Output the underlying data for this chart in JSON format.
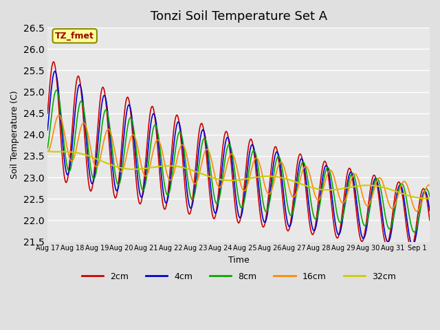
{
  "title": "Tonzi Soil Temperature Set A",
  "xlabel": "Time",
  "ylabel": "Soil Temperature (C)",
  "ylim": [
    21.5,
    26.5
  ],
  "xlim_days": [
    0,
    15.5
  ],
  "x_tick_labels": [
    "Aug 17",
    "Aug 18",
    "Aug 19",
    "Aug 20",
    "Aug 21",
    "Aug 22",
    "Aug 23",
    "Aug 24",
    "Aug 25",
    "Aug 26",
    "Aug 27",
    "Aug 28",
    "Aug 29",
    "Aug 30",
    "Aug 31",
    "Sep 1"
  ],
  "colors": {
    "2cm": "#cc0000",
    "4cm": "#0000cc",
    "8cm": "#00aa00",
    "16cm": "#ff8800",
    "32cm": "#cccc00"
  },
  "legend_label": "TZ_fmet",
  "fig_bg_color": "#e0e0e0",
  "plot_bg_color": "#e8e8e8",
  "grid_color": "white",
  "annotation_box_color": "#ffff99",
  "annotation_box_edge": "#888800",
  "yticks": [
    21.5,
    22.0,
    22.5,
    23.0,
    23.5,
    24.0,
    24.5,
    25.0,
    25.5,
    26.0,
    26.5
  ]
}
